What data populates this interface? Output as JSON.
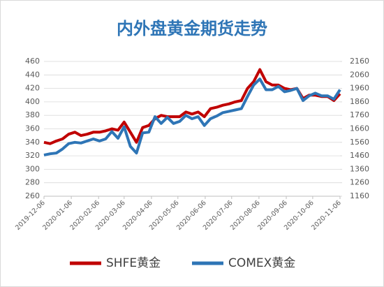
{
  "chart_data": {
    "type": "line",
    "title": "内外盘黄金期货走势",
    "x": [
      "2019-12-06",
      "2019-12-13",
      "2019-12-20",
      "2019-12-27",
      "2020-01-03",
      "2020-01-10",
      "2020-01-17",
      "2020-01-24",
      "2020-01-31",
      "2020-02-07",
      "2020-02-14",
      "2020-02-21",
      "2020-02-28",
      "2020-03-06",
      "2020-03-13",
      "2020-03-20",
      "2020-03-27",
      "2020-04-03",
      "2020-04-10",
      "2020-04-17",
      "2020-04-24",
      "2020-05-01",
      "2020-05-08",
      "2020-05-15",
      "2020-05-22",
      "2020-05-29",
      "2020-06-05",
      "2020-06-12",
      "2020-06-19",
      "2020-06-26",
      "2020-07-03",
      "2020-07-10",
      "2020-07-17",
      "2020-07-24",
      "2020-07-31",
      "2020-08-07",
      "2020-08-14",
      "2020-08-21",
      "2020-08-28",
      "2020-09-04",
      "2020-09-11",
      "2020-09-18",
      "2020-09-25",
      "2020-10-02",
      "2020-10-09",
      "2020-10-16",
      "2020-10-23",
      "2020-10-30",
      "2020-11-06"
    ],
    "series": [
      {
        "name": "SHFE黄金",
        "color": "#c00000",
        "values": [
          340,
          338,
          342,
          345,
          352,
          355,
          350,
          352,
          355,
          355,
          357,
          360,
          358,
          370,
          355,
          340,
          362,
          365,
          375,
          380,
          378,
          378,
          378,
          385,
          382,
          385,
          378,
          390,
          392,
          395,
          397,
          400,
          402,
          420,
          430,
          448,
          430,
          425,
          425,
          420,
          418,
          420,
          405,
          410,
          410,
          408,
          408,
          402,
          412
        ]
      },
      {
        "name": "COMEX黄金",
        "color": "#2e75b6",
        "axis": "y2",
        "values": [
          1465,
          1475,
          1480,
          1510,
          1550,
          1560,
          1555,
          1570,
          1585,
          1570,
          1585,
          1640,
          1590,
          1675,
          1530,
          1480,
          1630,
          1635,
          1750,
          1700,
          1745,
          1700,
          1715,
          1760,
          1735,
          1750,
          1685,
          1735,
          1755,
          1780,
          1790,
          1800,
          1810,
          1900,
          1985,
          2030,
          1950,
          1950,
          1975,
          1935,
          1945,
          1960,
          1870,
          1905,
          1925,
          1905,
          1905,
          1880,
          1950
        ]
      }
    ],
    "xlim": [
      "2019-12-06",
      "2020-11-06"
    ],
    "xticks": [
      "2019-12-06",
      "2020-01-06",
      "2020-02-06",
      "2020-03-06",
      "2020-04-06",
      "2020-05-06",
      "2020-06-06",
      "2020-07-06",
      "2020-08-06",
      "2020-09-06",
      "2020-10-06",
      "2020-11-06"
    ],
    "ylim": [
      260,
      460
    ],
    "yticks": [
      260,
      280,
      300,
      320,
      340,
      360,
      380,
      400,
      420,
      440,
      460
    ],
    "y2lim": [
      1160,
      2160
    ],
    "y2ticks": [
      1160,
      1260,
      1360,
      1460,
      1560,
      1660,
      1760,
      1860,
      1960,
      2060,
      2160
    ],
    "grid": true,
    "legend": "bottom"
  }
}
